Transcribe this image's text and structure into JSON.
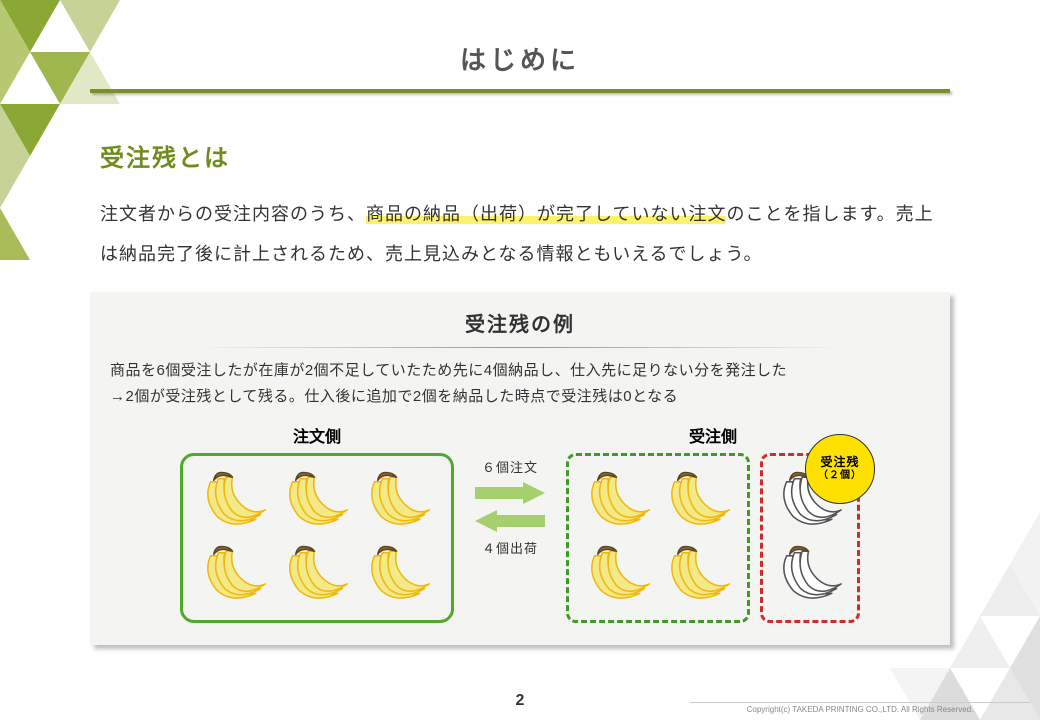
{
  "page": {
    "title": "はじめに",
    "page_number": "2",
    "copyright": "Copyright(c) TAKEDA PRINTING CO.,LTD. All Rights Reserved."
  },
  "section": {
    "heading": "受注残とは",
    "body_pre": "注文者からの受注内容のうち、",
    "body_highlight": "商品の納品（出荷）が完了していない注文",
    "body_post": "のことを指します。売上は納品完了後に計上されるため、売上見込みとなる情報ともいえるでしょう。"
  },
  "example": {
    "title": "受注残の例",
    "desc_line1": "商品を6個受注したが在庫が2個不足していたため先に4個納品し、仕入先に足りない分を発注した",
    "desc_line2": "→2個が受注残として残る。仕入後に追加で2個を納品した時点で受注残は0となる",
    "order_label": "注文側",
    "receive_label": "受注側",
    "arrow_top_label": "６個注文",
    "arrow_bottom_label": "４個出荷",
    "badge_line1": "受注残",
    "badge_line2": "（２個）",
    "order_count": 6,
    "receive_count": 4,
    "backorder_count": 2
  },
  "style": {
    "accent_green": "#7a8e2e",
    "heading_green": "#6f8c1c",
    "box_green": "#4fa92b",
    "dash_green": "#3f9a28",
    "dash_red": "#d12c2c",
    "arrow_green": "#a6cf6e",
    "highlight_yellow": "#fff26b",
    "badge_yellow": "#ffe100",
    "box_bg": "#f4f4f2",
    "banana_fill": "#f4e989",
    "banana_outline": "#f0b90b",
    "title_fontsize": 26,
    "subhead_fontsize": 24,
    "body_fontsize": 18
  }
}
